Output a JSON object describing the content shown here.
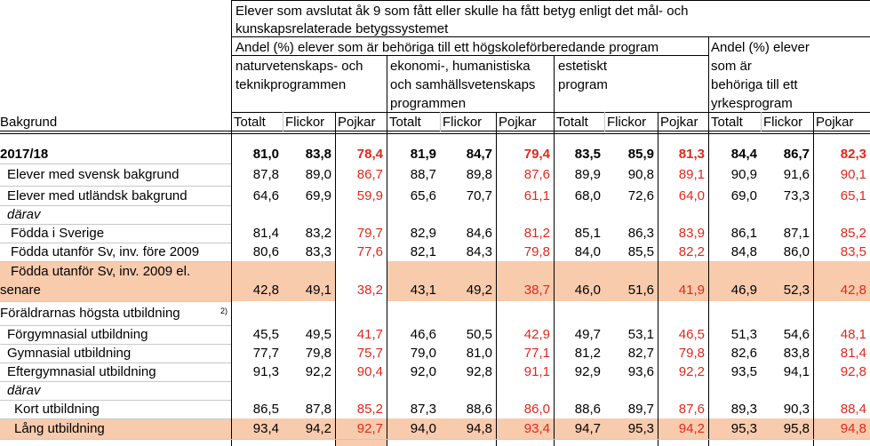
{
  "header": {
    "title_line1": "Elever som avslutat åk 9 som fått eller skulle ha fått betyg enligt det mål- och",
    "title_line2": "kunskapsrelaterade betygssystemet",
    "group_hs": "Andel (%) elever som är behöriga till ett högskoleförberedande program",
    "group_yrk": [
      "Andel (%) elever",
      "som är",
      "behöriga till ett",
      "yrkesprogram"
    ],
    "prog_nat": [
      "naturvetenskaps- och",
      "teknikprogrammen"
    ],
    "prog_eko": [
      "ekonomi-, humanistiska",
      "och samhällsvetenskaps",
      "programmen"
    ],
    "prog_est": [
      "estetiskt",
      "program"
    ],
    "bakgrund": "Bakgrund",
    "sub_cols": [
      "Totalt",
      "Flickor",
      "Pojkar"
    ]
  },
  "rows": [
    {
      "label": "2017/18",
      "values": [
        "81,0",
        "83,8",
        "78,4",
        "81,9",
        "84,7",
        "79,4",
        "83,5",
        "85,9",
        "81,3",
        "84,4",
        "86,7",
        "82,3"
      ]
    },
    {
      "label": "Elever med svensk bakgrund",
      "values": [
        "87,8",
        "89,0",
        "86,7",
        "88,7",
        "89,8",
        "87,6",
        "89,9",
        "90,8",
        "89,1",
        "90,9",
        "91,6",
        "90,1"
      ]
    },
    {
      "label": "Elever med utländsk bakgrund",
      "values": [
        "64,6",
        "69,9",
        "59,9",
        "65,6",
        "70,7",
        "61,1",
        "68,0",
        "72,6",
        "64,0",
        "69,0",
        "73,3",
        "65,1"
      ]
    },
    {
      "label": "därav",
      "values": []
    },
    {
      "label": "Födda i Sverige",
      "values": [
        "81,4",
        "83,2",
        "79,7",
        "82,9",
        "84,6",
        "81,2",
        "85,1",
        "86,3",
        "83,9",
        "86,1",
        "87,1",
        "85,2"
      ]
    },
    {
      "label": "Födda utanför Sv, inv. före 2009",
      "values": [
        "80,6",
        "83,3",
        "77,6",
        "82,1",
        "84,3",
        "79,8",
        "84,0",
        "85,5",
        "82,2",
        "84,8",
        "86,0",
        "83,5"
      ]
    },
    {
      "label_line1": "Födda utanför Sv, inv. 2009 el.",
      "label_line2": "senare",
      "values": [
        "42,8",
        "49,1",
        "38,2",
        "43,1",
        "49,2",
        "38,7",
        "46,0",
        "51,6",
        "41,9",
        "46,9",
        "52,3",
        "42,8"
      ]
    },
    {
      "label": "Föräldrarnas högsta utbildning",
      "sup": "2)",
      "values": []
    },
    {
      "label": "Förgymnasial utbildning",
      "values": [
        "45,5",
        "49,5",
        "41,7",
        "46,6",
        "50,5",
        "42,9",
        "49,7",
        "53,1",
        "46,5",
        "51,3",
        "54,6",
        "48,1"
      ]
    },
    {
      "label": "Gymnasial utbildning",
      "values": [
        "77,7",
        "79,8",
        "75,7",
        "79,0",
        "81,0",
        "77,1",
        "81,2",
        "82,7",
        "79,8",
        "82,6",
        "83,8",
        "81,4"
      ]
    },
    {
      "label": "Eftergymnasial utbildning",
      "values": [
        "91,3",
        "92,2",
        "90,4",
        "92,0",
        "92,8",
        "91,1",
        "92,9",
        "93,6",
        "92,2",
        "93,5",
        "94,1",
        "92,8"
      ]
    },
    {
      "label": "därav",
      "values": []
    },
    {
      "label": "Kort utbildning",
      "values": [
        "86,5",
        "87,8",
        "85,2",
        "87,3",
        "88,6",
        "86,0",
        "88,6",
        "89,7",
        "87,6",
        "89,3",
        "90,3",
        "88,4"
      ]
    },
    {
      "label": "Lång utbildning",
      "values": [
        "93,4",
        "94,2",
        "92,7",
        "94,0",
        "94,8",
        "93,4",
        "94,7",
        "95,3",
        "94,2",
        "95,3",
        "95,8",
        "94,8"
      ]
    }
  ],
  "colors": {
    "highlight": "#f8cbad",
    "pojkar_red": "#e0281b"
  }
}
